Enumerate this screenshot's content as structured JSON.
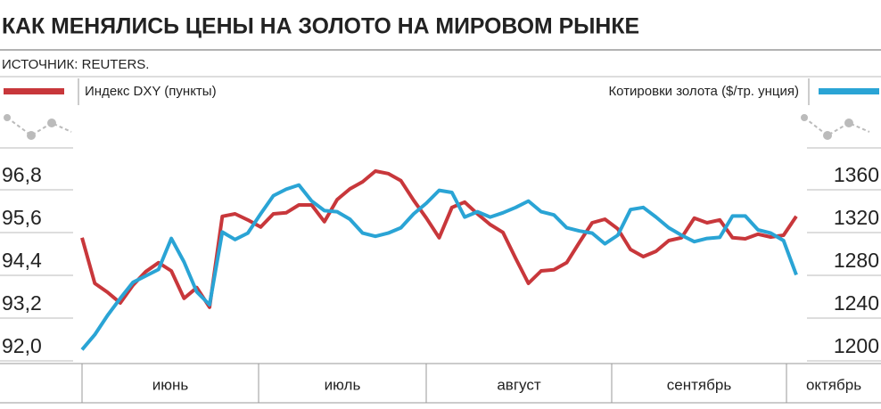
{
  "chart_data": {
    "type": "line",
    "title": "КАК МЕНЯЛИСЬ ЦЕНЫ НА ЗОЛОТО НА МИРОВОМ РЫНКЕ",
    "source": "ИСТОЧНИК: REUTERS.",
    "months": [
      "июнь",
      "июль",
      "август",
      "сентябрь",
      "октябрь"
    ],
    "series": [
      {
        "name": "Индекс DXY (пункты)",
        "color": "#c8373b",
        "axis": "y",
        "values": [
          95.08,
          93.8,
          93.55,
          93.25,
          93.75,
          94.13,
          94.38,
          94.15,
          93.38,
          93.68,
          93.13,
          95.68,
          95.75,
          95.58,
          95.38,
          95.75,
          95.78,
          96.0,
          96.0,
          95.53,
          96.15,
          96.45,
          96.65,
          96.95,
          96.88,
          96.68,
          96.13,
          95.63,
          95.08,
          95.93,
          96.08,
          95.75,
          95.45,
          95.23,
          94.5,
          93.8,
          94.15,
          94.18,
          94.38,
          94.95,
          95.5,
          95.6,
          95.33,
          94.75,
          94.55,
          94.7,
          95.0,
          95.08,
          95.63,
          95.5,
          95.58,
          95.08,
          95.05,
          95.18,
          95.1,
          95.15,
          95.68
        ]
      },
      {
        "name": "Котировки золота ($/тр. унция)",
        "color": "#2aa4d5",
        "axis": "y2",
        "values": [
          1198,
          1212,
          1230,
          1246,
          1261,
          1267,
          1273,
          1302,
          1280,
          1252,
          1240,
          1308,
          1301,
          1307,
          1325,
          1342,
          1348,
          1352,
          1337,
          1328,
          1327,
          1320,
          1307,
          1304,
          1307,
          1312,
          1325,
          1335,
          1347,
          1345,
          1322,
          1327,
          1322,
          1326,
          1331,
          1337,
          1327,
          1324,
          1312,
          1309,
          1307,
          1297,
          1305,
          1329,
          1331,
          1322,
          1312,
          1305,
          1299,
          1302,
          1303,
          1323,
          1323,
          1310,
          1307,
          1300,
          1268
        ]
      }
    ],
    "ylim": [
      91.55,
      98.0
    ],
    "yticks": [
      {
        "value": 96.8,
        "label": "96,8"
      },
      {
        "value": 95.6,
        "label": "95,6"
      },
      {
        "value": 94.4,
        "label": "94,4"
      },
      {
        "value": 93.2,
        "label": "93,2"
      },
      {
        "value": 92.0,
        "label": "92,0"
      }
    ],
    "y2lim": [
      1185,
      1400
    ],
    "y2ticks": [
      1360,
      1320,
      1280,
      1240,
      1200
    ]
  }
}
